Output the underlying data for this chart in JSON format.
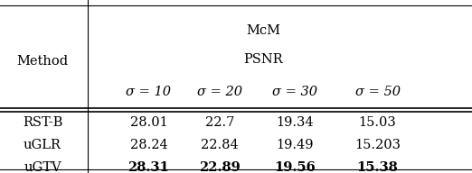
{
  "title_line1": "McM",
  "title_line2": "PSNR",
  "col_header_method": "Method",
  "sigma_cols": [
    "σ = 10",
    "σ = 20",
    "σ = 30",
    "σ = 50"
  ],
  "rows": [
    {
      "method": "RST-B",
      "values": [
        "28.01",
        "22.7",
        "19.34",
        "15.03"
      ],
      "bold": [
        false,
        false,
        false,
        false
      ]
    },
    {
      "method": "uGLR",
      "values": [
        "28.24",
        "22.84",
        "19.49",
        "15.203"
      ],
      "bold": [
        false,
        false,
        false,
        false
      ]
    },
    {
      "method": "uGTV",
      "values": [
        "28.31",
        "22.89",
        "19.56",
        "15.38"
      ],
      "bold": [
        true,
        true,
        true,
        true
      ]
    }
  ],
  "figsize": [
    5.22,
    1.92
  ],
  "dpi": 100,
  "bg_color": "#ffffff",
  "font_size": 10.5
}
